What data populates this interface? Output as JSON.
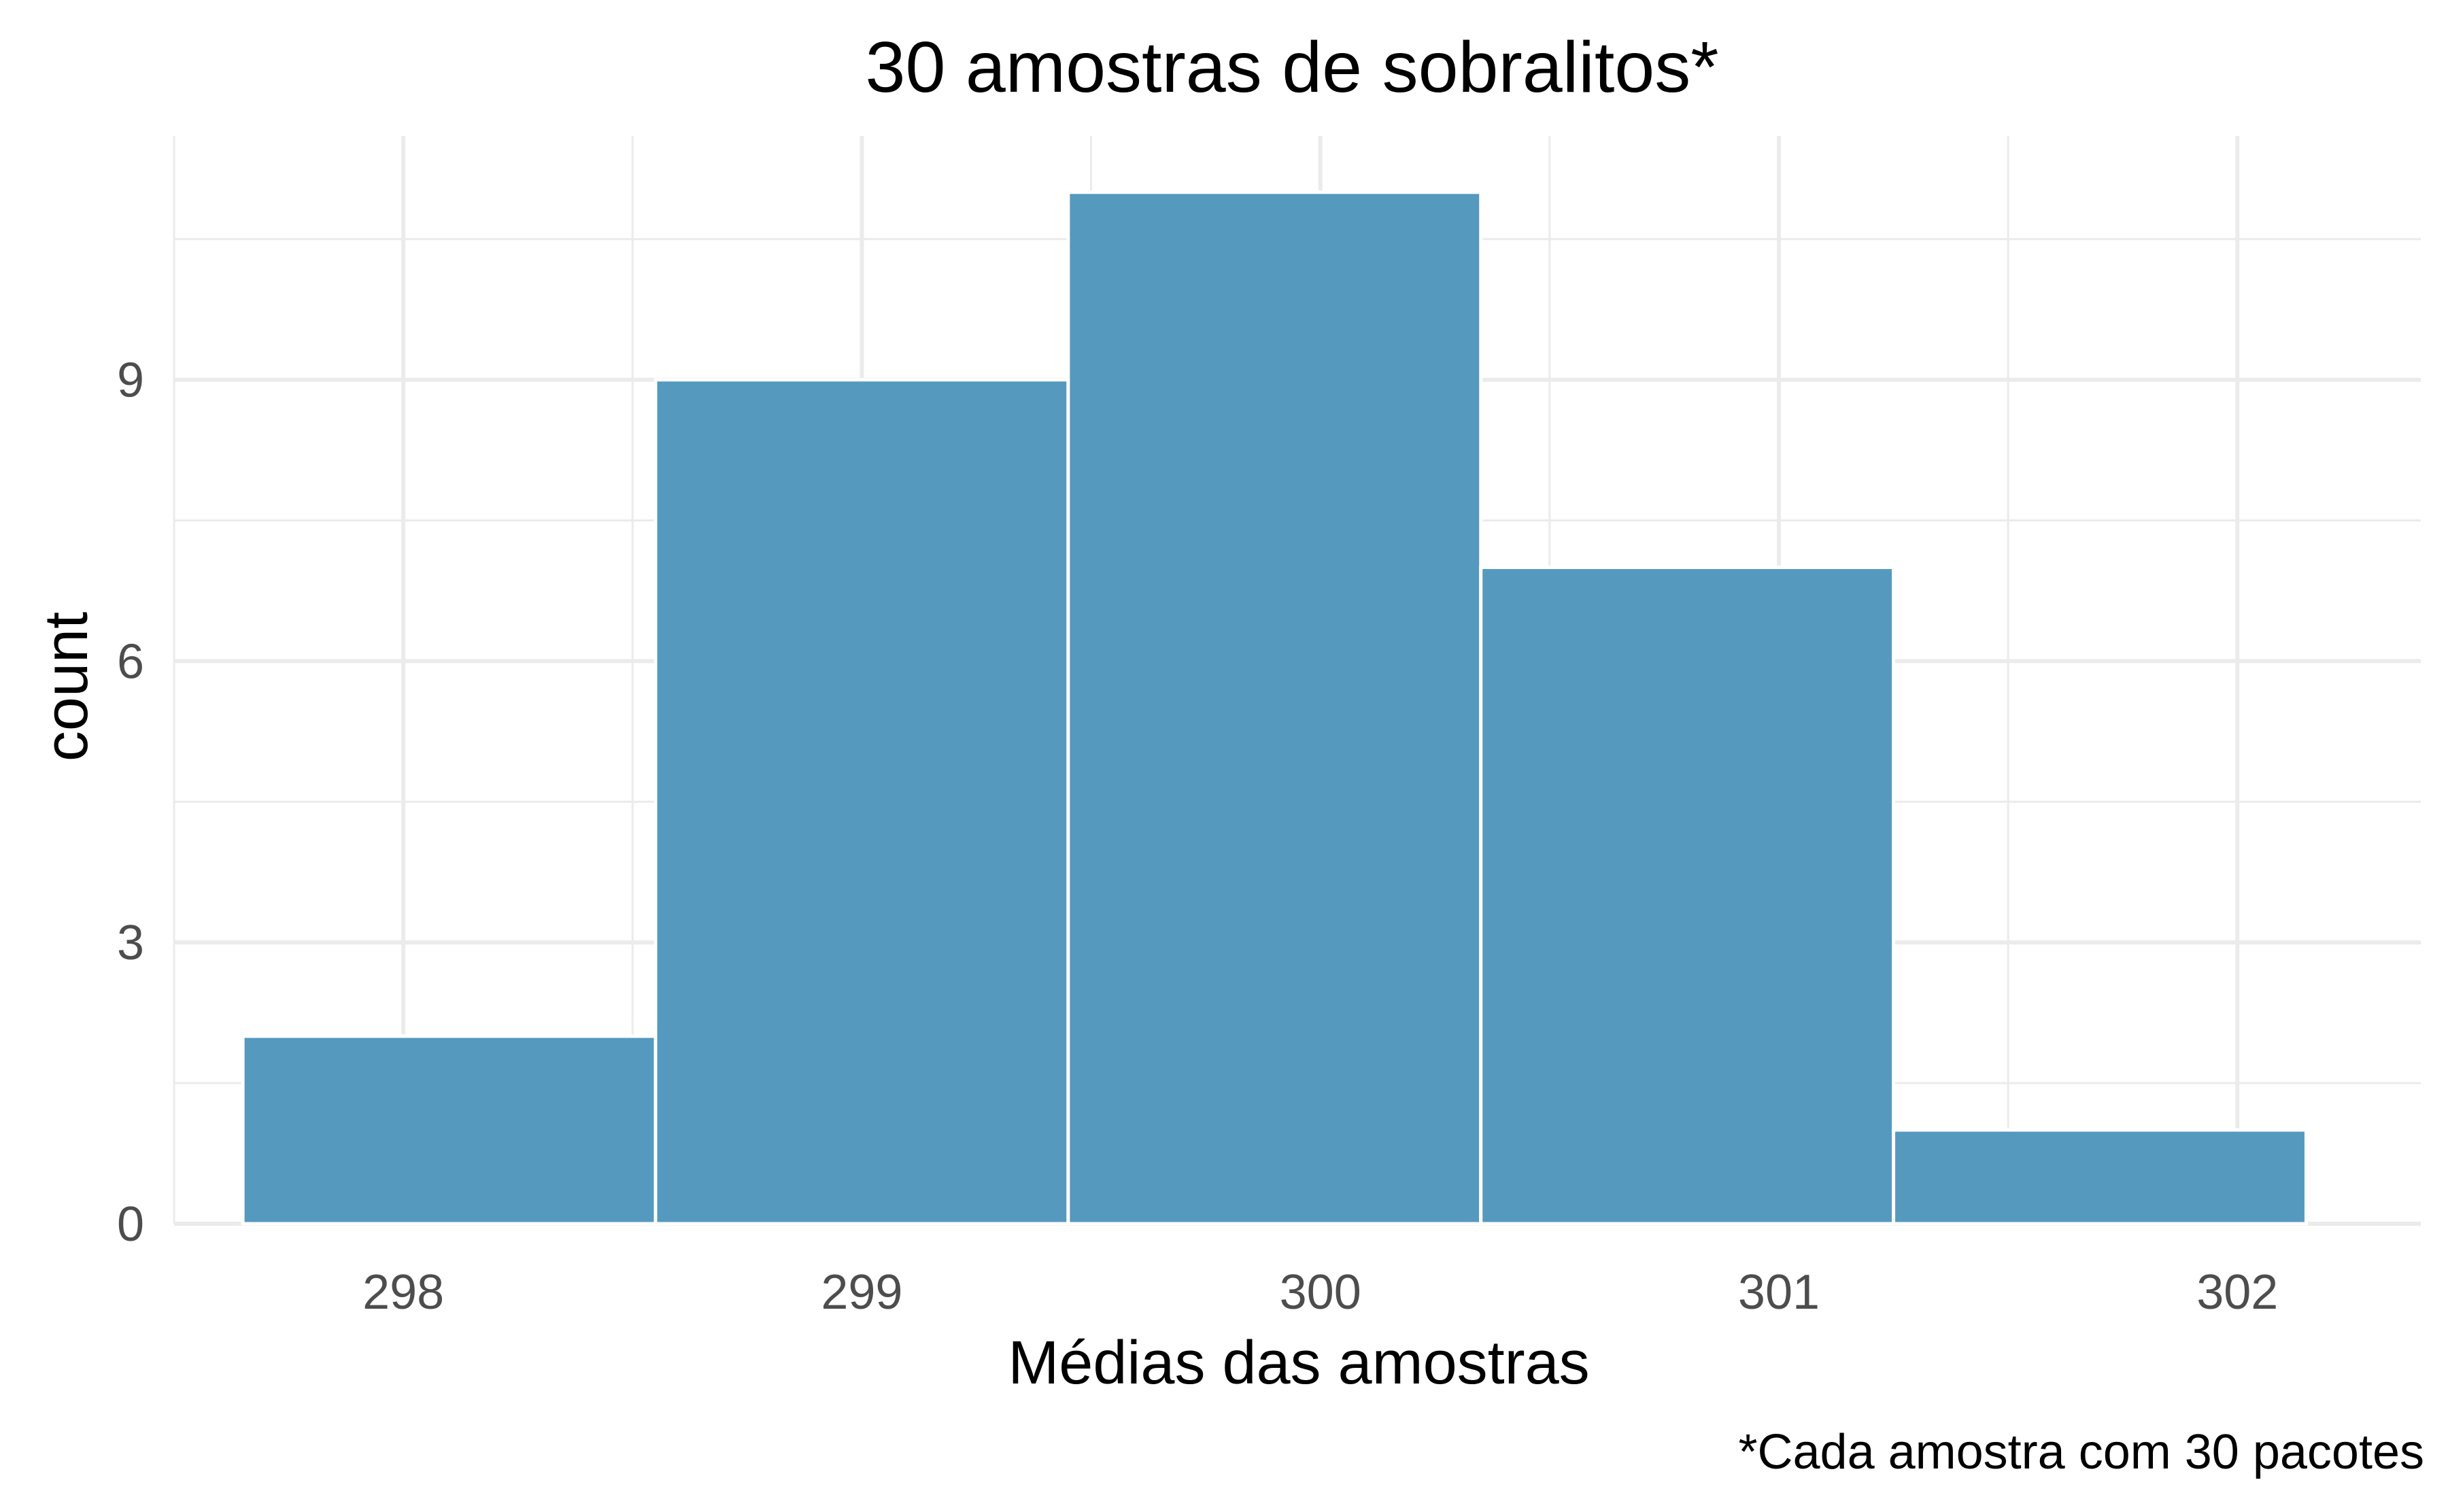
{
  "chart_data": {
    "type": "bar",
    "title": "30 amostras de sobralitos*",
    "xlabel": "Médias das amostras",
    "ylabel": "count",
    "caption": "*Cada amostra com 30 pacotes",
    "x_ticks": [
      "298",
      "299",
      "300",
      "301",
      "302"
    ],
    "y_ticks": [
      "0",
      "3",
      "6",
      "9"
    ],
    "xlim": [
      297.5,
      302.4
    ],
    "ylim": [
      0,
      11.6
    ],
    "bins": [
      {
        "center": 298.1,
        "count": 2
      },
      {
        "center": 299.0,
        "count": 9
      },
      {
        "center": 299.9,
        "count": 11
      },
      {
        "center": 300.8,
        "count": 7
      },
      {
        "center": 301.7,
        "count": 1
      }
    ],
    "bin_width": 0.9,
    "bar_color": "#5699be",
    "grid": true,
    "theme": "minimal"
  }
}
